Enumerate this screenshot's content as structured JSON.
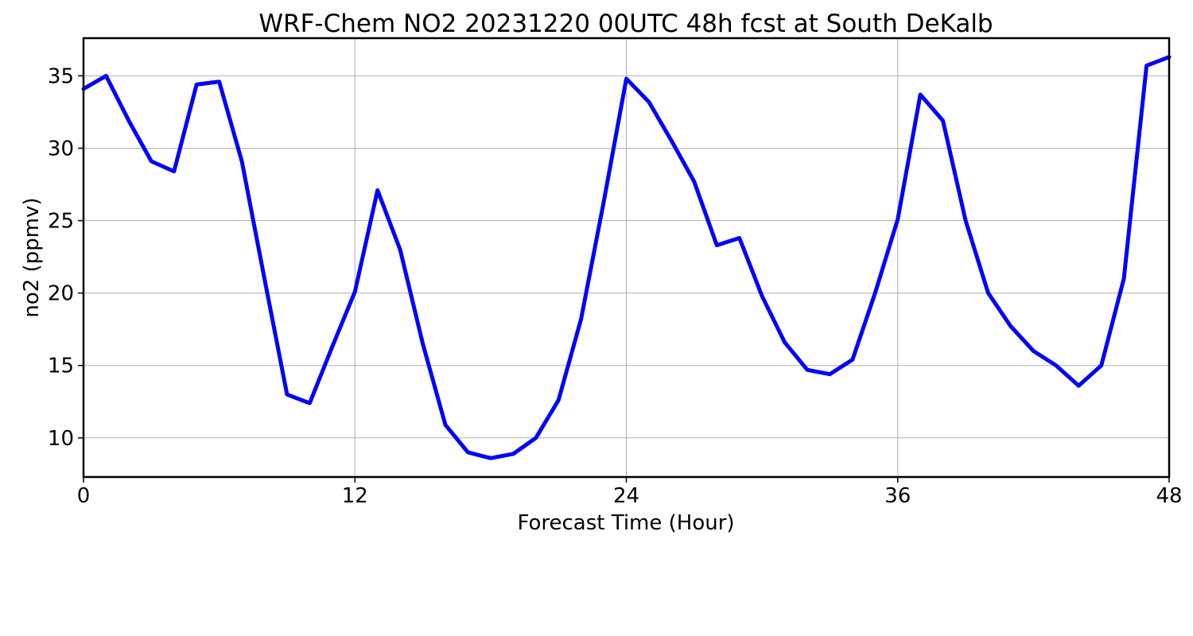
{
  "chart_data": {
    "type": "line",
    "title": "WRF-Chem NO2  20231220 00UTC 48h fcst at South DeKalb",
    "xlabel": "Forecast Time (Hour)",
    "ylabel": "no2  (ppmv)",
    "xlim": [
      0,
      48
    ],
    "ylim": [
      7.3,
      37.6
    ],
    "x_ticks": [
      0,
      12,
      24,
      36,
      48
    ],
    "x_tick_labels": [
      "0",
      "12",
      "24",
      "36",
      "48"
    ],
    "y_ticks": [
      10,
      15,
      20,
      25,
      30,
      35
    ],
    "y_tick_labels": [
      "10",
      "15",
      "20",
      "25",
      "30",
      "35"
    ],
    "grid": true,
    "series": [
      {
        "color": "#0000ff",
        "x": [
          0,
          1,
          2,
          3,
          4,
          5,
          6,
          7,
          8,
          9,
          10,
          11,
          12,
          13,
          14,
          15,
          16,
          17,
          18,
          19,
          20,
          21,
          22,
          23,
          24,
          25,
          26,
          27,
          28,
          29,
          30,
          31,
          32,
          33,
          34,
          35,
          36,
          37,
          38,
          39,
          40,
          41,
          42,
          43,
          44,
          45,
          46,
          47,
          48
        ],
        "values": [
          34.1,
          35.0,
          31.9,
          29.1,
          28.4,
          34.4,
          34.6,
          29.1,
          21.0,
          13.0,
          12.4,
          16.3,
          20.1,
          27.1,
          23.0,
          16.5,
          10.9,
          9.0,
          8.6,
          8.9,
          10.0,
          12.6,
          18.2,
          26.3,
          34.8,
          33.2,
          30.5,
          27.7,
          23.3,
          23.8,
          19.8,
          16.6,
          14.7,
          14.4,
          15.4,
          20.0,
          25.1,
          33.7,
          31.9,
          25.0,
          20.0,
          17.7,
          16.0,
          15.0,
          13.6,
          15.0,
          21.0,
          35.7,
          36.3
        ]
      }
    ]
  }
}
